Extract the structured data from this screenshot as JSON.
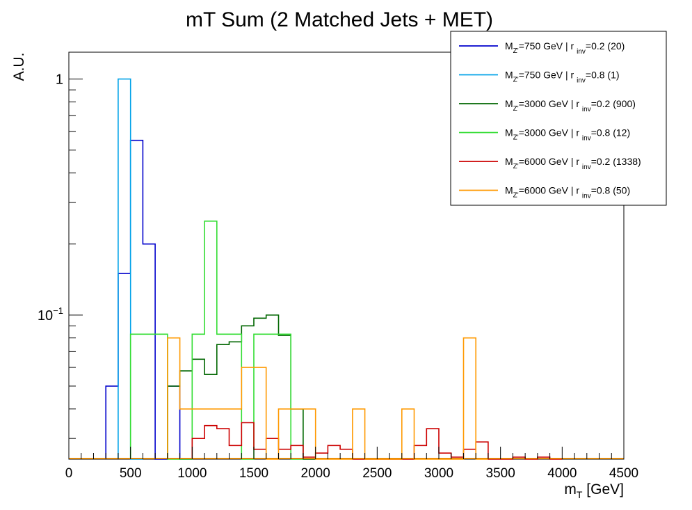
{
  "chart_data": {
    "type": "histogram",
    "title": "mT Sum (2 Matched Jets + MET)",
    "xlabel": "m_T [GeV]",
    "ylabel": "A.U.",
    "xlim": [
      0,
      4500
    ],
    "ylim": [
      0.0245,
      1.3
    ],
    "yscale": "log",
    "bin_width": 100,
    "grid": false,
    "legend_position": "top-right",
    "x_ticks": [
      0,
      500,
      1000,
      1500,
      2000,
      2500,
      3000,
      3500,
      4000,
      4500
    ],
    "y_tick_labels": [
      {
        "value": 1,
        "base": "1",
        "exp": ""
      },
      {
        "value": 0.1,
        "base": "10",
        "exp": "−1"
      }
    ],
    "series": [
      {
        "name": "M_Z'=750 GeV | r_inv=0.2 (20)",
        "legend": {
          "pre": "M",
          "sub1": "Z'",
          "mid": "=750 GeV | r ",
          "sub2": "inv",
          "post": "=0.2 (20)"
        },
        "color": "#0000cc",
        "bins": [
          [
            350,
            0.05
          ],
          [
            450,
            0.15
          ],
          [
            550,
            0.55
          ],
          [
            650,
            0.2
          ],
          [
            750,
            0.0
          ],
          [
            850,
            0.05
          ],
          [
            950,
            0.0
          ]
        ]
      },
      {
        "name": "M_Z'=750 GeV | r_inv=0.8 (1)",
        "legend": {
          "pre": "M",
          "sub1": "Z'",
          "mid": "=750 GeV | r ",
          "sub2": "inv",
          "post": "=0.8 (1)"
        },
        "color": "#00a2e8",
        "bins": [
          [
            450,
            1.0
          ],
          [
            550,
            0.0
          ]
        ]
      },
      {
        "name": "M_Z'=3000 GeV | r_inv=0.2 (900)",
        "legend": {
          "pre": "M",
          "sub1": "Z'",
          "mid": "=3000 GeV | r ",
          "sub2": "inv",
          "post": "=0.2 (900)"
        },
        "color": "#006600",
        "bins": [
          [
            850,
            0.05
          ],
          [
            950,
            0.058
          ],
          [
            1050,
            0.065
          ],
          [
            1150,
            0.056
          ],
          [
            1250,
            0.075
          ],
          [
            1350,
            0.077
          ],
          [
            1450,
            0.09
          ],
          [
            1550,
            0.097
          ],
          [
            1650,
            0.1
          ],
          [
            1750,
            0.082
          ],
          [
            1850,
            0.04
          ],
          [
            1950,
            0.0
          ]
        ]
      },
      {
        "name": "M_Z'=3000 GeV | r_inv=0.8 (12)",
        "legend": {
          "pre": "M",
          "sub1": "Z'",
          "mid": "=3000 GeV | r ",
          "sub2": "inv",
          "post": "=0.8 (12)"
        },
        "color": "#33dd33",
        "bins": [
          [
            550,
            0.083
          ],
          [
            650,
            0.083
          ],
          [
            750,
            0.083
          ],
          [
            850,
            0.0
          ],
          [
            1050,
            0.083
          ],
          [
            1150,
            0.25
          ],
          [
            1250,
            0.083
          ],
          [
            1350,
            0.083
          ],
          [
            1450,
            0.0
          ],
          [
            1550,
            0.083
          ],
          [
            1650,
            0.083
          ],
          [
            1750,
            0.083
          ],
          [
            1850,
            0.0
          ]
        ]
      },
      {
        "name": "M_Z'=6000 GeV | r_inv=0.2 (1338)",
        "legend": {
          "pre": "M",
          "sub1": "Z'",
          "mid": "=6000 GeV | r ",
          "sub2": "inv",
          "post": "=0.2 (1338)"
        },
        "color": "#cc0000",
        "bins": [
          [
            1050,
            0.03
          ],
          [
            1150,
            0.034
          ],
          [
            1250,
            0.033
          ],
          [
            1350,
            0.028
          ],
          [
            1450,
            0.035
          ],
          [
            1550,
            0.027
          ],
          [
            1650,
            0.03
          ],
          [
            1750,
            0.027
          ],
          [
            1850,
            0.028
          ],
          [
            1950,
            0.025
          ],
          [
            2050,
            0.026
          ],
          [
            2150,
            0.028
          ],
          [
            2250,
            0.027
          ],
          [
            2350,
            0.0
          ],
          [
            2850,
            0.028
          ],
          [
            2950,
            0.033
          ],
          [
            3050,
            0.026
          ],
          [
            3150,
            0.025
          ],
          [
            3250,
            0.027
          ],
          [
            3350,
            0.029
          ],
          [
            3450,
            0.0
          ],
          [
            3650,
            0.025
          ],
          [
            3750,
            0.0
          ],
          [
            3850,
            0.025
          ],
          [
            3950,
            0.0
          ]
        ]
      },
      {
        "name": "M_Z'=6000 GeV | r_inv=0.8 (50)",
        "legend": {
          "pre": "M",
          "sub1": "Z'",
          "mid": "=6000 GeV | r ",
          "sub2": "inv",
          "post": "=0.8 (50)"
        },
        "color": "#ff9900",
        "bins": [
          [
            850,
            0.08
          ],
          [
            950,
            0.04
          ],
          [
            1050,
            0.04
          ],
          [
            1150,
            0.04
          ],
          [
            1250,
            0.04
          ],
          [
            1350,
            0.04
          ],
          [
            1450,
            0.06
          ],
          [
            1550,
            0.06
          ],
          [
            1650,
            0.0
          ],
          [
            1750,
            0.04
          ],
          [
            1850,
            0.04
          ],
          [
            1950,
            0.04
          ],
          [
            2050,
            0.0
          ],
          [
            2350,
            0.04
          ],
          [
            2450,
            0.0
          ],
          [
            2750,
            0.04
          ],
          [
            2850,
            0.0
          ],
          [
            3250,
            0.08
          ],
          [
            3350,
            0.0
          ]
        ]
      }
    ]
  }
}
